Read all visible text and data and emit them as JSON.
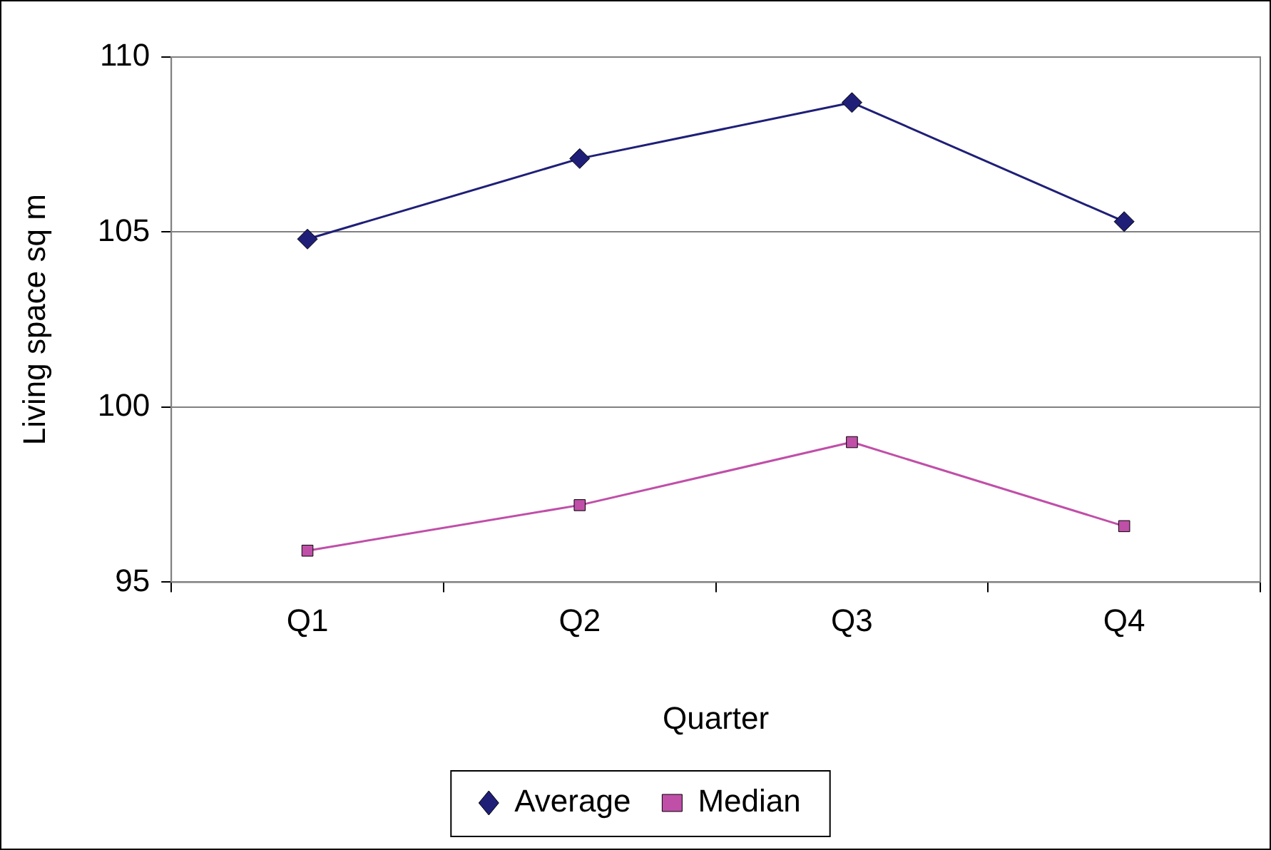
{
  "chart_data": {
    "type": "line",
    "xlabel": "Quarter",
    "ylabel": "Living space sq m",
    "categories": [
      "Q1",
      "Q2",
      "Q3",
      "Q4"
    ],
    "series": [
      {
        "name": "Average",
        "color": "#1f1f78",
        "marker": "diamond",
        "values": [
          104.8,
          107.1,
          108.7,
          105.3
        ]
      },
      {
        "name": "Median",
        "color": "#c04fa8",
        "marker": "square",
        "values": [
          95.9,
          97.2,
          99.0,
          96.6
        ]
      }
    ],
    "ylim": [
      95,
      110
    ],
    "yticks": [
      95,
      100,
      105,
      110
    ],
    "grid": "y",
    "legend": "bottom",
    "line_style": "solid"
  }
}
